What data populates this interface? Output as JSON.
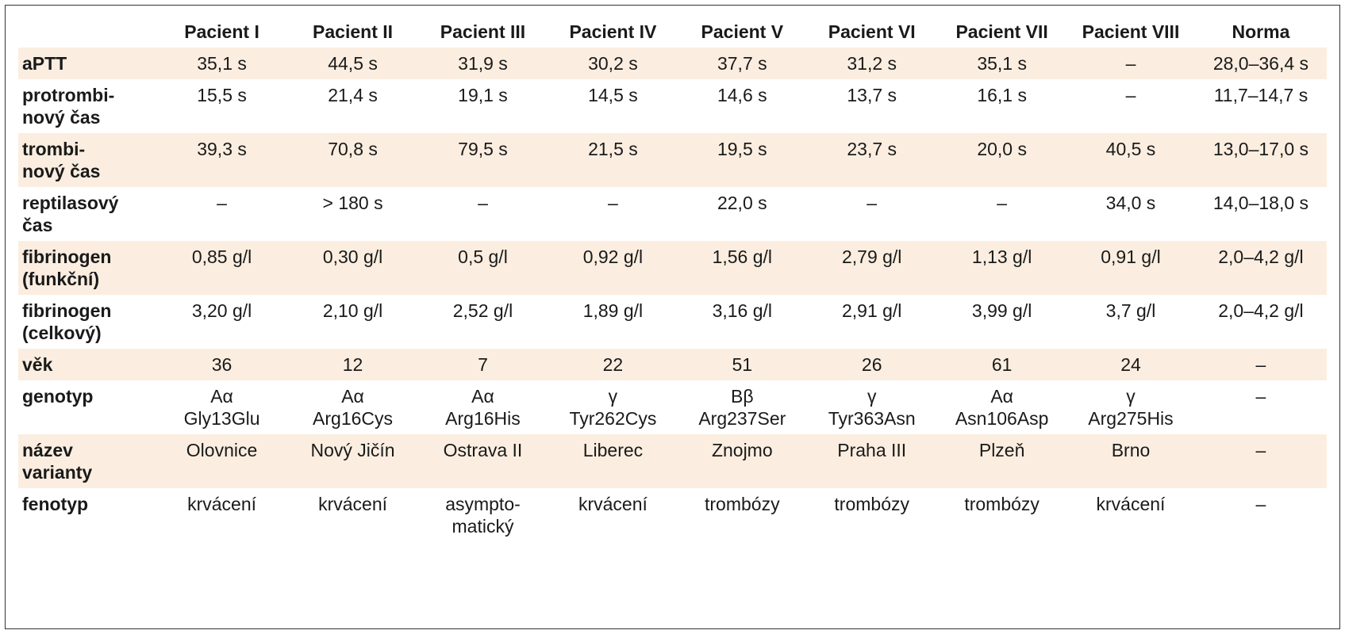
{
  "table": {
    "columns": [
      "",
      "Pacient I",
      "Pacient II",
      "Pacient III",
      "Pacient IV",
      "Pacient V",
      "Pacient VI",
      "Pacient VII",
      "Pacient VIII",
      "Norma"
    ],
    "rows": [
      {
        "label": [
          "aPTT"
        ],
        "shaded": true,
        "cells": [
          [
            "35,1 s"
          ],
          [
            "44,5 s"
          ],
          [
            "31,9 s"
          ],
          [
            "30,2 s"
          ],
          [
            "37,7 s"
          ],
          [
            "31,2 s"
          ],
          [
            "35,1 s"
          ],
          [
            "–"
          ],
          [
            "28,0–36,4 s"
          ]
        ]
      },
      {
        "label": [
          "protrombi-",
          "nový čas"
        ],
        "shaded": false,
        "cells": [
          [
            "15,5 s"
          ],
          [
            "21,4 s"
          ],
          [
            "19,1 s"
          ],
          [
            "14,5 s"
          ],
          [
            "14,6 s"
          ],
          [
            "13,7 s"
          ],
          [
            "16,1 s"
          ],
          [
            "–"
          ],
          [
            "11,7–14,7 s"
          ]
        ]
      },
      {
        "label": [
          "trombi-",
          "nový čas"
        ],
        "shaded": true,
        "cells": [
          [
            "39,3 s"
          ],
          [
            "70,8 s"
          ],
          [
            "79,5 s"
          ],
          [
            "21,5 s"
          ],
          [
            "19,5 s"
          ],
          [
            "23,7 s"
          ],
          [
            "20,0 s"
          ],
          [
            "40,5 s"
          ],
          [
            "13,0–17,0 s"
          ]
        ]
      },
      {
        "label": [
          "reptilasový",
          "čas"
        ],
        "shaded": false,
        "cells": [
          [
            "–"
          ],
          [
            "> 180 s"
          ],
          [
            "–"
          ],
          [
            "–"
          ],
          [
            "22,0 s"
          ],
          [
            "–"
          ],
          [
            "–"
          ],
          [
            "34,0 s"
          ],
          [
            "14,0–18,0 s"
          ]
        ]
      },
      {
        "label": [
          "fibrinogen",
          "(funkční)"
        ],
        "shaded": true,
        "cells": [
          [
            "0,85 g/l"
          ],
          [
            "0,30 g/l"
          ],
          [
            "0,5 g/l"
          ],
          [
            "0,92 g/l"
          ],
          [
            "1,56 g/l"
          ],
          [
            "2,79 g/l"
          ],
          [
            "1,13 g/l"
          ],
          [
            "0,91 g/l"
          ],
          [
            "2,0–4,2 g/l"
          ]
        ]
      },
      {
        "label": [
          "fibrinogen",
          "(celkový)"
        ],
        "shaded": false,
        "cells": [
          [
            "3,20 g/l"
          ],
          [
            "2,10 g/l"
          ],
          [
            "2,52 g/l"
          ],
          [
            "1,89 g/l"
          ],
          [
            "3,16 g/l"
          ],
          [
            "2,91 g/l"
          ],
          [
            "3,99 g/l"
          ],
          [
            "3,7 g/l"
          ],
          [
            "2,0–4,2 g/l"
          ]
        ]
      },
      {
        "label": [
          "věk"
        ],
        "shaded": true,
        "cells": [
          [
            "36"
          ],
          [
            "12"
          ],
          [
            "7"
          ],
          [
            "22"
          ],
          [
            "51"
          ],
          [
            "26"
          ],
          [
            "61"
          ],
          [
            "24"
          ],
          [
            "–"
          ]
        ]
      },
      {
        "label": [
          "genotyp"
        ],
        "shaded": false,
        "cells": [
          [
            "Aα",
            "Gly13Glu"
          ],
          [
            "Aα",
            "Arg16Cys"
          ],
          [
            "Aα",
            "Arg16His"
          ],
          [
            "γ",
            "Tyr262Cys"
          ],
          [
            "Bβ",
            "Arg237Ser"
          ],
          [
            "γ",
            "Tyr363Asn"
          ],
          [
            "Aα",
            "Asn106Asp"
          ],
          [
            "γ",
            "Arg275His"
          ],
          [
            "–"
          ]
        ]
      },
      {
        "label": [
          "název",
          "varianty"
        ],
        "shaded": true,
        "cells": [
          [
            "Olovnice"
          ],
          [
            "Nový Jičín"
          ],
          [
            "Ostrava II"
          ],
          [
            "Liberec"
          ],
          [
            "Znojmo"
          ],
          [
            "Praha III"
          ],
          [
            "Plzeň"
          ],
          [
            "Brno"
          ],
          [
            "–"
          ]
        ]
      },
      {
        "label": [
          "fenotyp"
        ],
        "shaded": false,
        "cells": [
          [
            "krvácení"
          ],
          [
            "krvácení"
          ],
          [
            "asympto-",
            "matický"
          ],
          [
            "krvácení"
          ],
          [
            "trombózy"
          ],
          [
            "trombózy"
          ],
          [
            "trombózy"
          ],
          [
            "krvácení"
          ],
          [
            "–"
          ]
        ]
      }
    ]
  }
}
